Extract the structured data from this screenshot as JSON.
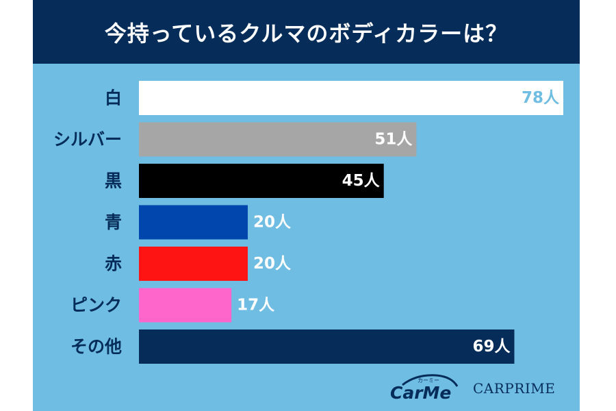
{
  "title": "今持っているクルマのボディカラーは？",
  "chart_data": {
    "type": "bar",
    "orientation": "horizontal",
    "title": "今持っているクルマのボディカラーは？",
    "categories": [
      "白",
      "シルバー",
      "黒",
      "青",
      "赤",
      "ピンク",
      "その他"
    ],
    "values": [
      78,
      51,
      45,
      20,
      20,
      17,
      69
    ],
    "value_labels": [
      "78人",
      "51人",
      "45人",
      "20人",
      "20人",
      "17人",
      "69人"
    ],
    "bar_colors": [
      "#ffffff",
      "#a6a6a6",
      "#000000",
      "#0046ad",
      "#ff1414",
      "#ff66cc",
      "#062c59"
    ],
    "value_label_colors": [
      "#6fbde3",
      "#ffffff",
      "#ffffff",
      "#ffffff",
      "#ffffff",
      "#ffffff",
      "#ffffff"
    ],
    "value_label_inside": [
      true,
      true,
      true,
      false,
      false,
      false,
      true
    ],
    "xlim": [
      0,
      78
    ],
    "grid": false,
    "xlabel": "",
    "ylabel": ""
  },
  "logos": {
    "carme_text": "CarMe",
    "carme_kana": "カーミー",
    "carprime_text": "CARPRIME"
  },
  "colors": {
    "background": "#6fbde3",
    "title_bar": "#062c59",
    "label_text": "#062c59"
  }
}
